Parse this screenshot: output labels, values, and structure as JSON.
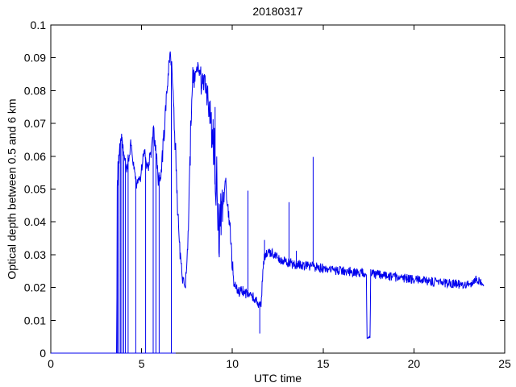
{
  "figure": {
    "background": "#ffffff",
    "title": "20180317"
  },
  "chart_data": {
    "type": "line",
    "title": "20180317",
    "xlabel": "UTC time",
    "ylabel": "Optical depth between 0.5 and 6 km",
    "xlim": [
      0,
      25
    ],
    "ylim": [
      0,
      0.1
    ],
    "xticks": [
      0,
      5,
      10,
      15,
      20,
      25
    ],
    "xtick_labels": [
      "0",
      "5",
      "10",
      "15",
      "20",
      "25"
    ],
    "yticks": [
      0,
      0.01,
      0.02,
      0.03,
      0.04,
      0.05,
      0.06,
      0.07,
      0.08,
      0.09,
      0.1
    ],
    "ytick_labels": [
      "0",
      "0.01",
      "0.02",
      "0.03",
      "0.04",
      "0.05",
      "0.06",
      "0.07",
      "0.08",
      "0.09",
      "0.1"
    ],
    "grid": false,
    "legend": null,
    "box": true,
    "line_color": "#0000ee",
    "axis_color": "#000000",
    "series": [
      {
        "name": "optical-depth-trace",
        "t_range": [
          0,
          23.85
        ],
        "sample_step": 0.02,
        "noise_seed": 20180317,
        "keypoints": [
          [
            0,
            0,
            0
          ],
          [
            3.63,
            0,
            0
          ],
          [
            3.66,
            0.052,
            0.004
          ],
          [
            3.78,
            0.061,
            0.003
          ],
          [
            3.9,
            0.0655,
            0.0018
          ],
          [
            4.05,
            0.0605,
            0.0025
          ],
          [
            4.2,
            0.0565,
            0.002
          ],
          [
            4.4,
            0.0635,
            0.0018
          ],
          [
            4.55,
            0.057,
            0.002
          ],
          [
            4.72,
            0.052,
            0.0018
          ],
          [
            4.9,
            0.0525,
            0.0018
          ],
          [
            5.08,
            0.059,
            0.0018
          ],
          [
            5.18,
            0.061,
            0.0018
          ],
          [
            5.32,
            0.0565,
            0.0018
          ],
          [
            5.5,
            0.0595,
            0.0025
          ],
          [
            5.65,
            0.0695,
            0.0018
          ],
          [
            5.78,
            0.061,
            0.003
          ],
          [
            5.95,
            0.051,
            0.004
          ],
          [
            6.12,
            0.057,
            0.004
          ],
          [
            6.32,
            0.0735,
            0.003
          ],
          [
            6.5,
            0.0875,
            0.002
          ],
          [
            6.58,
            0.0905,
            0.0015
          ],
          [
            6.68,
            0.0865,
            0.0025
          ],
          [
            6.8,
            0.072,
            0.004
          ],
          [
            6.95,
            0.05,
            0.005
          ],
          [
            7.1,
            0.031,
            0.003
          ],
          [
            7.25,
            0.0225,
            0.0018
          ],
          [
            7.42,
            0.0215,
            0.0018
          ],
          [
            7.55,
            0.033,
            0.004
          ],
          [
            7.68,
            0.062,
            0.006
          ],
          [
            7.82,
            0.0855,
            0.003
          ],
          [
            7.95,
            0.0835,
            0.004
          ],
          [
            8.12,
            0.086,
            0.0035
          ],
          [
            8.3,
            0.0825,
            0.0045
          ],
          [
            8.5,
            0.0815,
            0.0035
          ],
          [
            8.68,
            0.077,
            0.0045
          ],
          [
            8.85,
            0.069,
            0.006
          ],
          [
            9.0,
            0.061,
            0.008
          ],
          [
            9.15,
            0.049,
            0.011
          ],
          [
            9.3,
            0.037,
            0.011
          ],
          [
            9.45,
            0.043,
            0.007
          ],
          [
            9.6,
            0.052,
            0.0025
          ],
          [
            9.72,
            0.048,
            0.0035
          ],
          [
            9.85,
            0.04,
            0.003
          ],
          [
            9.97,
            0.029,
            0.0025
          ],
          [
            10.1,
            0.0205,
            0.0018
          ],
          [
            10.35,
            0.019,
            0.0018
          ],
          [
            10.7,
            0.0185,
            0.0018
          ],
          [
            11.0,
            0.018,
            0.0018
          ],
          [
            11.25,
            0.0165,
            0.0016
          ],
          [
            11.45,
            0.0142,
            0.0014
          ],
          [
            11.58,
            0.0148,
            0.0014
          ],
          [
            11.68,
            0.0255,
            0.0018
          ],
          [
            11.78,
            0.0295,
            0.0016
          ],
          [
            11.9,
            0.0302,
            0.0015
          ],
          [
            12.2,
            0.0308,
            0.0015
          ],
          [
            12.5,
            0.0288,
            0.0015
          ],
          [
            12.9,
            0.0278,
            0.0015
          ],
          [
            13.3,
            0.0272,
            0.0015
          ],
          [
            13.8,
            0.0268,
            0.0015
          ],
          [
            14.3,
            0.0265,
            0.0015
          ],
          [
            14.8,
            0.026,
            0.0015
          ],
          [
            15.3,
            0.0256,
            0.0015
          ],
          [
            15.8,
            0.0252,
            0.0015
          ],
          [
            16.3,
            0.0249,
            0.0015
          ],
          [
            16.8,
            0.0247,
            0.0015
          ],
          [
            17.38,
            0.0244,
            0.0014
          ],
          [
            17.42,
            0.0048,
            0.0004
          ],
          [
            17.58,
            0.005,
            0.0004
          ],
          [
            17.62,
            0.0242,
            0.0014
          ],
          [
            18.1,
            0.0238,
            0.0014
          ],
          [
            18.6,
            0.0234,
            0.0014
          ],
          [
            19.1,
            0.023,
            0.0014
          ],
          [
            19.6,
            0.0227,
            0.0014
          ],
          [
            20.1,
            0.0224,
            0.0014
          ],
          [
            20.6,
            0.022,
            0.0014
          ],
          [
            21.1,
            0.0217,
            0.0014
          ],
          [
            21.6,
            0.0214,
            0.0014
          ],
          [
            22.1,
            0.0212,
            0.0014
          ],
          [
            22.6,
            0.021,
            0.0014
          ],
          [
            23.1,
            0.0212,
            0.0013
          ],
          [
            23.45,
            0.0224,
            0.0013
          ],
          [
            23.65,
            0.0218,
            0.0012
          ],
          [
            23.85,
            0.021,
            0.001
          ]
        ],
        "zero_baseline": [
          0,
          6.88
        ],
        "dropouts_to_zero": [
          3.67,
          3.74,
          3.83,
          3.91,
          4.02,
          4.11,
          4.26,
          4.68,
          5.22,
          5.64,
          5.79,
          5.97,
          6.64
        ],
        "spikes": [
          [
            9.05,
            0.075
          ],
          [
            10.86,
            0.0495
          ],
          [
            11.51,
            0.006
          ],
          [
            11.77,
            0.0345
          ],
          [
            13.12,
            0.046
          ],
          [
            13.52,
            0.0312
          ],
          [
            14.45,
            0.0598
          ]
        ]
      }
    ]
  }
}
